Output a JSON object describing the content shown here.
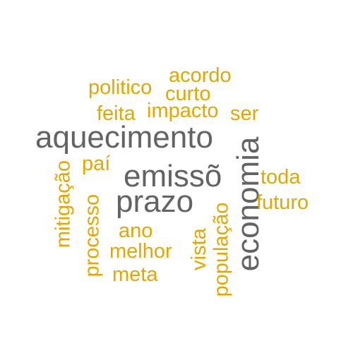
{
  "colors": {
    "primary": "#636363",
    "secondary": "#E0A800",
    "background": "#ffffff"
  },
  "words": {
    "aquecimento": "aquecimento",
    "economia": "economia",
    "emisso": "emissõ",
    "prazo": "prazo",
    "acordo": "acordo",
    "politico": "politico",
    "curto": "curto",
    "impacto": "impacto",
    "ser": "ser",
    "feita": "feita",
    "pai": "paí",
    "toda": "toda",
    "futuro": "futuro",
    "mitigacao": "mitigação",
    "processo": "processo",
    "ano": "ano",
    "melhor": "melhor",
    "meta": "meta",
    "vista": "vista",
    "populacao": "população"
  }
}
